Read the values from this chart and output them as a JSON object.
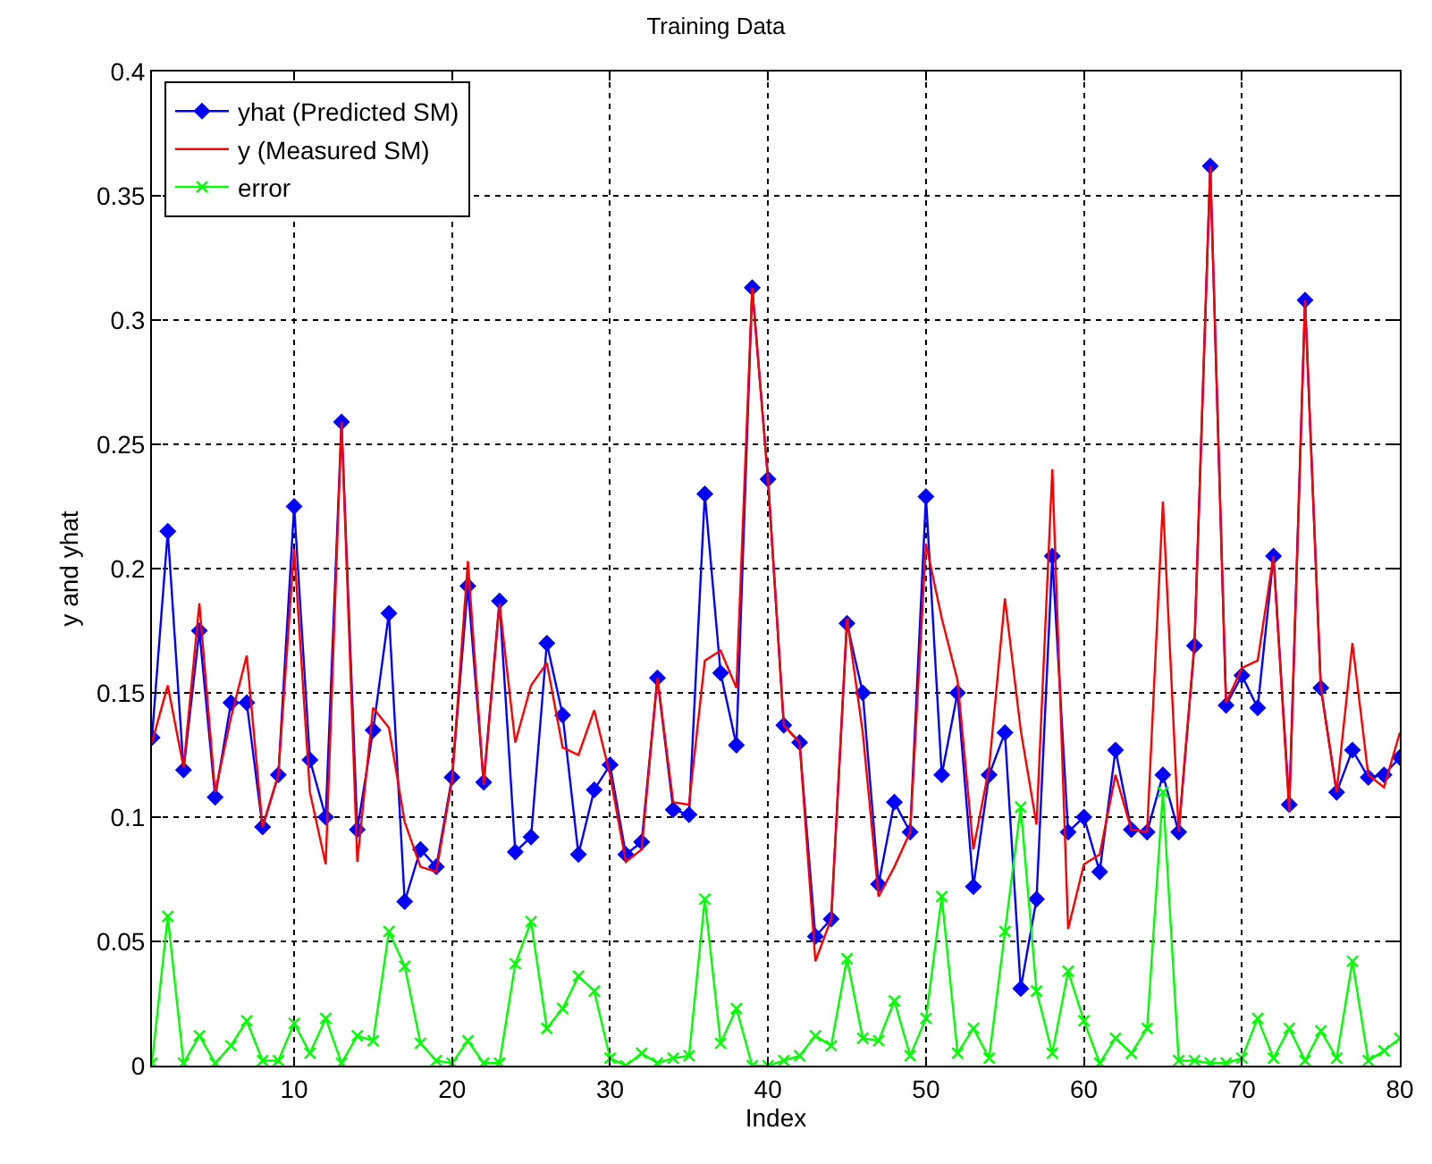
{
  "chart_data": {
    "type": "line",
    "title": "Training Data",
    "xlabel": "Index",
    "ylabel": "y and yhat",
    "x": [
      1,
      2,
      3,
      4,
      5,
      6,
      7,
      8,
      9,
      10,
      11,
      12,
      13,
      14,
      15,
      16,
      17,
      18,
      19,
      20,
      21,
      22,
      23,
      24,
      25,
      26,
      27,
      28,
      29,
      30,
      31,
      32,
      33,
      34,
      35,
      36,
      37,
      38,
      39,
      40,
      41,
      42,
      43,
      44,
      45,
      46,
      47,
      48,
      49,
      50,
      51,
      52,
      53,
      54,
      55,
      56,
      57,
      58,
      59,
      60,
      61,
      62,
      63,
      64,
      65,
      66,
      67,
      68,
      69,
      70,
      71,
      72,
      73,
      74,
      75,
      76,
      77,
      78,
      79,
      80
    ],
    "xlim": [
      1,
      80
    ],
    "xticks": [
      10,
      20,
      30,
      40,
      50,
      60,
      70,
      80
    ],
    "ylim": [
      0,
      0.4
    ],
    "yticks": [
      0,
      0.05,
      0.1,
      0.15,
      0.2,
      0.25,
      0.3,
      0.35,
      0.4
    ],
    "grid": true,
    "legend": "top left",
    "line_style": "solid",
    "series": [
      {
        "name": "yhat (Predicted SM)",
        "color": "#0000ff",
        "marker": "diamond",
        "values": [
          0.132,
          0.215,
          0.119,
          0.175,
          0.108,
          0.146,
          0.146,
          0.096,
          0.117,
          0.225,
          0.123,
          0.1,
          0.259,
          0.095,
          0.135,
          0.182,
          0.066,
          0.087,
          0.08,
          0.116,
          0.193,
          0.114,
          0.187,
          0.086,
          0.092,
          0.17,
          0.141,
          0.085,
          0.111,
          0.121,
          0.085,
          0.09,
          0.156,
          0.103,
          0.101,
          0.23,
          0.158,
          0.129,
          0.313,
          0.236,
          0.137,
          0.13,
          0.052,
          0.059,
          0.178,
          0.15,
          0.073,
          0.106,
          0.094,
          0.229,
          0.117,
          0.15,
          0.072,
          0.117,
          0.134,
          0.031,
          0.067,
          0.205,
          0.094,
          0.1,
          0.078,
          0.127,
          0.095,
          0.094,
          0.117,
          0.094,
          0.169,
          0.362,
          0.145,
          0.157,
          0.144,
          0.205,
          0.105,
          0.308,
          0.152,
          0.11,
          0.127,
          0.116,
          0.117,
          0.124
        ]
      },
      {
        "name": "y (Measured SM)",
        "color": "#ff0000",
        "marker": "none",
        "values": [
          0.13,
          0.153,
          0.12,
          0.186,
          0.11,
          0.14,
          0.165,
          0.096,
          0.117,
          0.208,
          0.11,
          0.081,
          0.259,
          0.082,
          0.144,
          0.136,
          0.098,
          0.08,
          0.078,
          0.115,
          0.203,
          0.113,
          0.186,
          0.13,
          0.153,
          0.162,
          0.128,
          0.125,
          0.143,
          0.117,
          0.082,
          0.087,
          0.156,
          0.106,
          0.105,
          0.163,
          0.167,
          0.152,
          0.313,
          0.236,
          0.137,
          0.13,
          0.042,
          0.059,
          0.18,
          0.134,
          0.068,
          0.08,
          0.094,
          0.21,
          0.18,
          0.155,
          0.087,
          0.12,
          0.188,
          0.135,
          0.097,
          0.24,
          0.055,
          0.081,
          0.085,
          0.117,
          0.095,
          0.094,
          0.227,
          0.094,
          0.17,
          0.362,
          0.146,
          0.16,
          0.163,
          0.205,
          0.102,
          0.308,
          0.152,
          0.11,
          0.17,
          0.117,
          0.112,
          0.134
        ]
      },
      {
        "name": "error",
        "color": "#00ff00",
        "marker": "cross",
        "values": [
          0.001,
          0.06,
          0.001,
          0.012,
          0.001,
          0.008,
          0.018,
          0.002,
          0.002,
          0.017,
          0.005,
          0.019,
          0.001,
          0.012,
          0.01,
          0.054,
          0.04,
          0.009,
          0.002,
          0.001,
          0.01,
          0.001,
          0.001,
          0.041,
          0.058,
          0.015,
          0.023,
          0.036,
          0.03,
          0.003,
          0.0,
          0.005,
          0.001,
          0.003,
          0.004,
          0.067,
          0.009,
          0.023,
          0.0,
          0.0,
          0.002,
          0.004,
          0.012,
          0.008,
          0.043,
          0.011,
          0.01,
          0.026,
          0.004,
          0.019,
          0.068,
          0.005,
          0.015,
          0.003,
          0.054,
          0.104,
          0.03,
          0.005,
          0.038,
          0.018,
          0.001,
          0.011,
          0.005,
          0.015,
          0.11,
          0.002,
          0.002,
          0.001,
          0.001,
          0.003,
          0.019,
          0.003,
          0.015,
          0.002,
          0.014,
          0.003,
          0.042,
          0.002,
          0.006,
          0.011
        ]
      }
    ]
  }
}
